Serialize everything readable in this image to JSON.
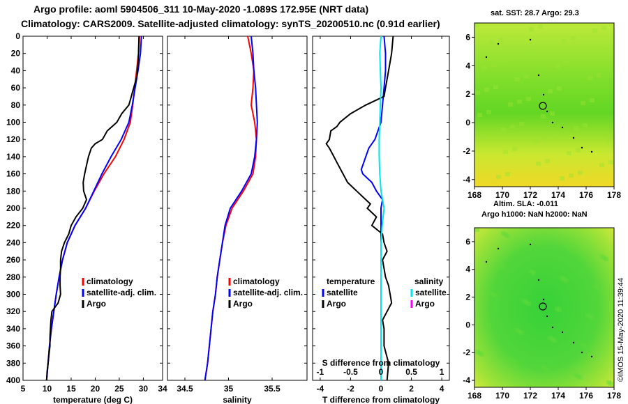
{
  "header": {
    "line1": "Argo profile: aoml 5904506_311 10-May-2020 -1.089S 172.95E (NRT data)",
    "line2": "Climatology: CARS2009. Satellite-adjusted climatology: synTS_20200510.nc (0.91d earlier)"
  },
  "maps": {
    "sst_title": "sat. SST: 28.7 Argo: 29.3",
    "sla_title_line1": "Altim. SLA: -0.011",
    "sla_title_line2": "Argo h1000: NaN h2000: NaN",
    "xticks": [
      "168",
      "170",
      "172",
      "174",
      "176",
      "178"
    ],
    "yticks": [
      "6",
      "4",
      "2",
      "0",
      "-2",
      "-4"
    ]
  },
  "stamp": "©IMOS 15-May-2020 11:39:44",
  "colors": {
    "climatology": "#ff0000",
    "satellite": "#0000ff",
    "argo": "#000000",
    "salinity_sat": "#00e5ee",
    "salinity_argo": "#ff00ff"
  },
  "chart_data": [
    {
      "type": "line",
      "title": "",
      "xlabel": "temperature (deg C)",
      "ylabel": "",
      "xlim": [
        5,
        34
      ],
      "ylim": [
        400,
        0
      ],
      "xticks": [
        "5",
        "10",
        "15",
        "20",
        "25",
        "30",
        "34"
      ],
      "yticks": [
        "0",
        "20",
        "40",
        "60",
        "80",
        "100",
        "120",
        "140",
        "160",
        "180",
        "200",
        "220",
        "240",
        "260",
        "280",
        "300",
        "320",
        "340",
        "360",
        "380",
        "400"
      ],
      "legend": [
        "climatology",
        "satellite-adj. clim.",
        "Argo"
      ],
      "legend_position": "bottom-right",
      "series": [
        {
          "name": "climatology",
          "color": "#ff0000",
          "depth": [
            0,
            20,
            40,
            60,
            80,
            100,
            120,
            140,
            160,
            180,
            200,
            220,
            240,
            260,
            280,
            300,
            320,
            340,
            360,
            380,
            400
          ],
          "values": [
            29.2,
            29.0,
            28.6,
            28.2,
            27.8,
            27.3,
            26.0,
            24.2,
            21.8,
            19.8,
            18.0,
            15.8,
            14.2,
            13.2,
            12.5,
            11.9,
            11.4,
            10.9,
            10.5,
            10.2,
            9.9
          ]
        },
        {
          "name": "satellite-adj. clim.",
          "color": "#0000ff",
          "depth": [
            0,
            20,
            40,
            60,
            80,
            100,
            120,
            140,
            160,
            180,
            200,
            220,
            240,
            260,
            280,
            300,
            320,
            340,
            360,
            380,
            400
          ],
          "values": [
            29.6,
            29.4,
            28.9,
            28.3,
            27.7,
            27.0,
            25.4,
            23.3,
            21.4,
            19.7,
            18.0,
            15.8,
            14.2,
            13.2,
            12.5,
            11.9,
            11.4,
            10.9,
            10.5,
            10.2,
            9.9
          ]
        },
        {
          "name": "Argo",
          "color": "#000000",
          "depth": [
            0,
            20,
            40,
            50,
            60,
            70,
            80,
            90,
            100,
            110,
            120,
            125,
            130,
            140,
            150,
            160,
            170,
            180,
            190,
            200,
            210,
            220,
            230,
            240,
            250,
            260,
            270,
            280,
            290,
            300,
            310,
            320,
            330,
            340,
            350,
            360,
            370,
            380,
            390,
            400
          ],
          "values": [
            29.1,
            29.0,
            28.8,
            28.5,
            28.0,
            27.5,
            27.0,
            25.5,
            24.5,
            22.5,
            21.5,
            20.0,
            19.2,
            18.6,
            18.2,
            17.8,
            17.5,
            17.6,
            18.2,
            17.4,
            16.0,
            15.0,
            14.5,
            13.6,
            13.0,
            12.8,
            12.8,
            12.7,
            12.7,
            12.8,
            12.3,
            11.0,
            10.8,
            10.7,
            10.6,
            10.6,
            10.4,
            10.2,
            10.0,
            9.9
          ]
        }
      ]
    },
    {
      "type": "line",
      "title": "",
      "xlabel": "salinity",
      "ylabel": "",
      "xlim": [
        34.3,
        35.9
      ],
      "ylim": [
        400,
        0
      ],
      "xticks": [
        "34.5",
        "35",
        "35.5"
      ],
      "legend": [
        "climatology",
        "satellite-adj. clim.",
        "Argo"
      ],
      "legend_position": "bottom-right",
      "series": [
        {
          "name": "climatology",
          "color": "#ff0000",
          "depth": [
            0,
            20,
            40,
            60,
            80,
            100,
            120,
            140,
            160,
            180,
            200,
            220,
            240,
            260,
            280,
            300,
            320,
            340,
            360,
            380,
            400
          ],
          "values": [
            35.22,
            35.26,
            35.29,
            35.28,
            35.26,
            35.3,
            35.32,
            35.31,
            35.28,
            35.17,
            35.04,
            34.97,
            34.93,
            34.9,
            34.87,
            34.85,
            34.82,
            34.8,
            34.78,
            34.76,
            34.73
          ]
        },
        {
          "name": "satellite-adj. clim.",
          "color": "#0000ff",
          "depth": [
            0,
            20,
            40,
            60,
            80,
            100,
            120,
            140,
            160,
            180,
            200,
            220,
            240,
            260,
            280,
            300,
            320,
            340,
            360,
            380,
            400
          ],
          "values": [
            35.26,
            35.28,
            35.29,
            35.31,
            35.32,
            35.33,
            35.32,
            35.3,
            35.26,
            35.15,
            35.02,
            34.96,
            34.93,
            34.9,
            34.87,
            34.85,
            34.82,
            34.8,
            34.78,
            34.76,
            34.73
          ]
        },
        {
          "name": "Argo",
          "color": "#000000",
          "depth": [],
          "values": []
        }
      ]
    },
    {
      "type": "line",
      "title": "",
      "xlabel": "T difference from climatology",
      "xlabel_top": "S difference from climatology",
      "ylabel": "",
      "xlim": [
        -4.5,
        4.5
      ],
      "ylim": [
        400,
        0
      ],
      "xticks": [
        "-4",
        "-2",
        "0",
        "2",
        "4"
      ],
      "xticks_top": [
        "-1",
        "-0.5",
        "0",
        "0.5",
        "1"
      ],
      "legend_temperature_title": "temperature",
      "legend_salinity_title": "salinity",
      "legend": [
        "satellite",
        "Argo"
      ],
      "series": [
        {
          "name": "T satellite",
          "color": "#0000ff",
          "depth": [
            0,
            20,
            40,
            60,
            80,
            100,
            110,
            120,
            130,
            140,
            150,
            155,
            160,
            170,
            180,
            190,
            200,
            210,
            220,
            240,
            260,
            280,
            300,
            320,
            340,
            360,
            380,
            400
          ],
          "values": [
            0.2,
            0.3,
            0.3,
            0.2,
            0.1,
            0.0,
            -0.2,
            -0.4,
            -0.8,
            -1.0,
            -1.2,
            -1.3,
            -1.2,
            -0.6,
            -0.3,
            0.1,
            0.0,
            0.0,
            0.0,
            0.0,
            0.0,
            0.0,
            0.0,
            0.0,
            0.0,
            0.0,
            0.0,
            0.0
          ]
        },
        {
          "name": "T Argo",
          "color": "#000000",
          "depth": [
            0,
            20,
            40,
            60,
            70,
            80,
            90,
            100,
            105,
            110,
            120,
            125,
            130,
            140,
            150,
            160,
            170,
            180,
            190,
            195,
            200,
            210,
            220,
            230,
            240,
            250,
            260,
            270,
            280,
            290,
            300,
            310,
            320,
            330,
            340,
            360,
            380,
            400
          ],
          "values": [
            0.8,
            0.7,
            0.5,
            0.3,
            0.2,
            -1.0,
            -2.0,
            -2.7,
            -2.9,
            -3.3,
            -3.4,
            -3.6,
            -3.4,
            -3.1,
            -2.8,
            -2.5,
            -2.2,
            -1.6,
            -1.0,
            -0.7,
            -0.9,
            -0.3,
            -0.6,
            0.1,
            0.2,
            0.4,
            0.1,
            0.2,
            0.3,
            0.5,
            0.6,
            0.7,
            0.4,
            0.1,
            0.2,
            0.2,
            0.5,
            0.4
          ]
        },
        {
          "name": "S satellite",
          "color": "#00e5ee",
          "depth": [
            0,
            20,
            40,
            60,
            80,
            100,
            120,
            140,
            160,
            180,
            200,
            220,
            240,
            260,
            280,
            300,
            320,
            340,
            360,
            380,
            400
          ],
          "values": [
            0.0,
            -0.02,
            -0.01,
            0.0,
            -0.01,
            -0.02,
            -0.03,
            -0.03,
            -0.02,
            0.0,
            0.05,
            0.02,
            0.0,
            0.0,
            0.0,
            0.0,
            0.0,
            0.0,
            0.0,
            0.0,
            0.0
          ]
        },
        {
          "name": "S Argo",
          "color": "#ff00ff",
          "depth": [],
          "values": []
        }
      ]
    }
  ]
}
